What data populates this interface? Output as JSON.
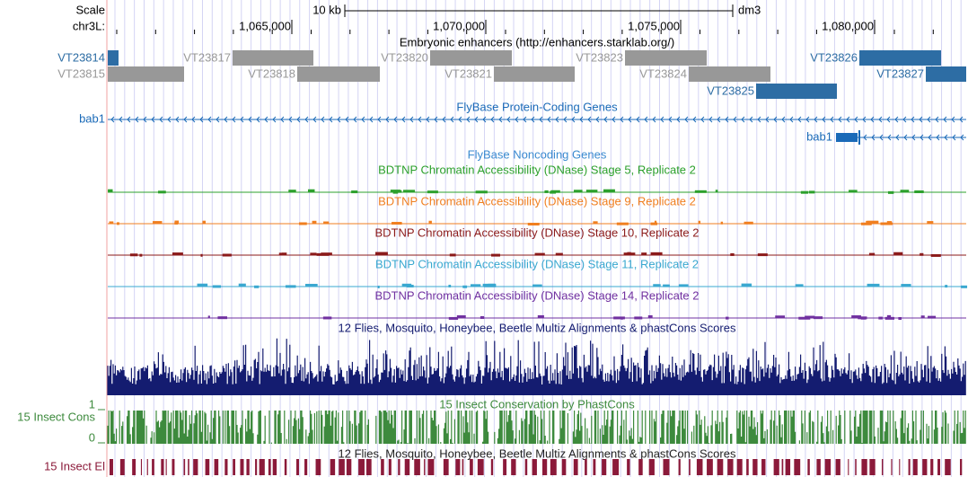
{
  "header": {
    "scale_label": "Scale",
    "scale_bar": "10 kb",
    "assembly": "dm3",
    "chrom": "chr3L:",
    "positions": [
      "1,065,000",
      "1,070,000",
      "1,075,000",
      "1,080,000"
    ]
  },
  "enhancers": {
    "title": "Embryonic enhancers (http://enhancers.starklab.org/)",
    "features": [
      "VT23814",
      "VT23815",
      "VT23817",
      "VT23818",
      "VT23820",
      "VT23821",
      "VT23823",
      "VT23824",
      "VT23825",
      "VT23826",
      "VT23827"
    ]
  },
  "protein_genes": {
    "title": "FlyBase Protein-Coding Genes",
    "genes": [
      "bab1",
      "bab1"
    ]
  },
  "noncoding_genes": {
    "title": "FlyBase Noncoding Genes"
  },
  "dnase": [
    {
      "title": "BDTNP Chromatin Accessibility (DNase) Stage 5, Replicate 2"
    },
    {
      "title": "BDTNP Chromatin Accessibility (DNase) Stage 9, Replicate 2"
    },
    {
      "title": "BDTNP Chromatin Accessibility (DNase) Stage 10, Replicate 2"
    },
    {
      "title": "BDTNP Chromatin Accessibility (DNase) Stage 11, Replicate 2"
    },
    {
      "title": "BDTNP Chromatin Accessibility (DNase) Stage 14, Replicate 2"
    }
  ],
  "multiz": {
    "title": "12 Flies, Mosquito, Honeybee, Beetle Multiz Alignments & phastCons Scores"
  },
  "phastcons": {
    "title": "15 Insect Conservation by PhastCons",
    "label": "15 Insect Cons",
    "axis_max": "1",
    "axis_min": "0"
  },
  "elements": {
    "title": "12 Flies, Mosquito, Honeybee, Beetle Multiz Alignments & phastCons Scores",
    "label": "15 Insect El"
  }
}
